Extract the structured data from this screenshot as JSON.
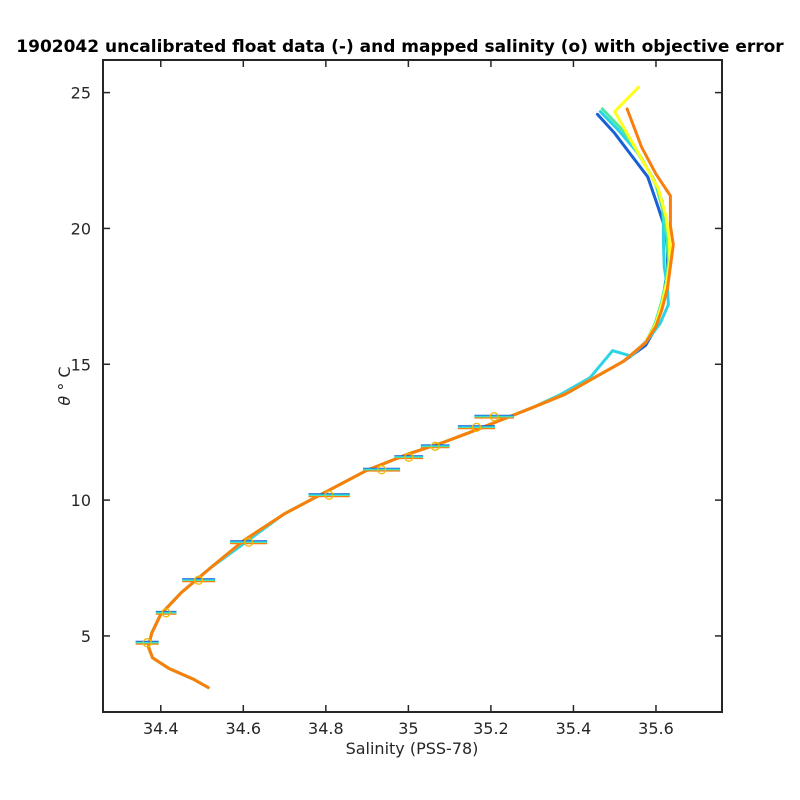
{
  "chart_data": {
    "type": "line",
    "title": "1902042 uncalibrated float data (-) and mapped salinity (o) with objective error",
    "xlabel": "Salinity (PSS-78)",
    "ylabel_symbol": "θ",
    "ylabel_rest": " ° C",
    "xlim": [
      34.26,
      35.76
    ],
    "ylim": [
      2.2,
      26.2
    ],
    "xticks": [
      34.4,
      34.6,
      34.8,
      35,
      35.2,
      35.4,
      35.6
    ],
    "xtick_labels": [
      "34.4",
      "34.6",
      "34.8",
      "35",
      "35.2",
      "35.4",
      "35.6"
    ],
    "yticks": [
      5,
      10,
      15,
      20,
      25
    ],
    "ytick_labels": [
      "5",
      "10",
      "15",
      "20",
      "25"
    ],
    "grid": false,
    "series": [
      {
        "color": "#1a5fd6",
        "width": 3,
        "x": [
          35.458,
          35.5,
          35.54,
          35.58,
          35.605,
          35.622,
          35.628,
          35.628,
          35.62,
          35.612,
          35.598,
          35.575,
          35.52,
          35.45,
          35.38,
          35.3,
          35.25,
          35.2,
          35.15,
          35.08,
          35.0,
          34.9,
          34.8,
          34.7,
          34.6,
          34.52,
          34.45,
          34.4,
          34.378,
          34.37,
          34.38,
          34.42,
          34.48,
          34.515
        ],
        "y": [
          24.2,
          23.5,
          22.7,
          21.9,
          20.8,
          20.0,
          19.2,
          18.5,
          17.7,
          17.0,
          16.3,
          15.7,
          15.1,
          14.5,
          13.9,
          13.4,
          13.1,
          12.8,
          12.5,
          12.1,
          11.7,
          11.1,
          10.3,
          9.5,
          8.5,
          7.5,
          6.6,
          5.8,
          5.1,
          4.6,
          4.2,
          3.8,
          3.4,
          3.1
        ]
      },
      {
        "color": "#2ad4e6",
        "width": 3,
        "x": [
          35.465,
          35.51,
          35.555,
          35.595,
          35.615,
          35.618,
          35.618,
          35.62,
          35.628,
          35.63,
          35.61,
          35.58,
          35.54,
          35.495,
          35.44,
          35.37,
          35.3,
          35.25,
          35.2,
          35.15,
          35.08,
          35.0,
          34.9,
          34.8,
          34.7,
          34.61,
          34.52,
          34.45,
          34.4,
          34.378,
          34.37,
          34.38,
          34.42,
          34.48,
          34.515
        ],
        "y": [
          24.3,
          23.6,
          22.8,
          21.8,
          21.0,
          20.2,
          19.5,
          18.6,
          17.8,
          17.2,
          16.5,
          15.9,
          15.3,
          15.5,
          14.5,
          13.9,
          13.4,
          13.1,
          12.8,
          12.5,
          12.1,
          11.7,
          11.1,
          10.3,
          9.5,
          8.5,
          7.5,
          6.6,
          5.8,
          5.1,
          4.6,
          4.2,
          3.8,
          3.4,
          3.1
        ]
      },
      {
        "color": "#4de8a0",
        "width": 3,
        "x": [
          35.47,
          35.52,
          35.565,
          35.6,
          35.618,
          35.626,
          35.63,
          35.624,
          35.612,
          35.598,
          35.575,
          35.52,
          35.45,
          35.38,
          35.3,
          35.25,
          35.2,
          35.15,
          35.08,
          35.0,
          34.9,
          34.8,
          34.7,
          34.6,
          34.52,
          34.45,
          34.4,
          34.378,
          34.37,
          34.38,
          34.42,
          34.48,
          34.515
        ],
        "y": [
          24.4,
          23.6,
          22.6,
          21.6,
          20.6,
          19.7,
          18.8,
          18.0,
          17.2,
          16.5,
          15.8,
          15.1,
          14.5,
          13.9,
          13.4,
          13.1,
          12.8,
          12.5,
          12.1,
          11.7,
          11.1,
          10.3,
          9.5,
          8.5,
          7.5,
          6.6,
          5.8,
          5.1,
          4.6,
          4.2,
          3.8,
          3.4,
          3.1
        ]
      },
      {
        "color": "#ffff1a",
        "width": 3,
        "x": [
          35.558,
          35.5,
          35.56,
          35.605,
          35.625,
          35.632,
          35.634,
          35.626,
          35.614,
          35.6,
          35.575,
          35.52,
          35.45,
          35.38,
          35.3,
          35.25,
          35.2,
          35.15,
          35.08,
          35.0,
          34.9,
          34.8,
          34.7,
          34.6,
          34.52,
          34.45,
          34.4,
          34.378,
          34.37,
          34.38,
          34.42,
          34.48,
          34.515
        ],
        "y": [
          25.2,
          24.3,
          22.7,
          21.5,
          20.4,
          19.6,
          18.8,
          18.0,
          17.2,
          16.5,
          15.8,
          15.1,
          14.5,
          13.9,
          13.4,
          13.1,
          12.8,
          12.5,
          12.1,
          11.7,
          11.1,
          10.3,
          9.5,
          8.5,
          7.5,
          6.6,
          5.8,
          5.1,
          4.6,
          4.2,
          3.8,
          3.4,
          3.1
        ]
      },
      {
        "color": "#f97e0e",
        "width": 3,
        "x": [
          35.53,
          35.565,
          35.6,
          35.635,
          35.635,
          35.642,
          35.628,
          35.614,
          35.6,
          35.575,
          35.52,
          35.45,
          35.38,
          35.3,
          35.25,
          35.2,
          35.15,
          35.08,
          35.0,
          34.9,
          34.8,
          34.7,
          34.6,
          34.52,
          34.45,
          34.4,
          34.378,
          34.37,
          34.38,
          34.42,
          34.48,
          34.515
        ],
        "y": [
          24.4,
          23.0,
          22.0,
          21.2,
          20.1,
          19.4,
          17.8,
          17.0,
          16.4,
          15.8,
          15.1,
          14.5,
          13.9,
          13.4,
          13.1,
          12.8,
          12.5,
          12.1,
          11.7,
          11.1,
          10.3,
          9.5,
          8.5,
          7.5,
          6.6,
          5.8,
          5.1,
          4.6,
          4.2,
          3.8,
          3.4,
          3.1
        ]
      }
    ],
    "mapped_salinity": {
      "marker_color": "#f2b707",
      "errorbar_colors": [
        "#1a5fd6",
        "#2ad4e6",
        "#4de8a0",
        "#f97e0e"
      ],
      "points": [
        {
          "x": 34.367,
          "y": 4.75,
          "err": 0.028
        },
        {
          "x": 34.413,
          "y": 5.85,
          "err": 0.025
        },
        {
          "x": 34.492,
          "y": 7.05,
          "err": 0.04
        },
        {
          "x": 34.613,
          "y": 8.45,
          "err": 0.045
        },
        {
          "x": 34.808,
          "y": 10.18,
          "err": 0.05
        },
        {
          "x": 34.935,
          "y": 11.12,
          "err": 0.045
        },
        {
          "x": 35.001,
          "y": 11.58,
          "err": 0.035
        },
        {
          "x": 35.065,
          "y": 11.98,
          "err": 0.035
        },
        {
          "x": 35.165,
          "y": 12.68,
          "err": 0.045
        },
        {
          "x": 35.208,
          "y": 13.07,
          "err": 0.048
        }
      ]
    }
  }
}
